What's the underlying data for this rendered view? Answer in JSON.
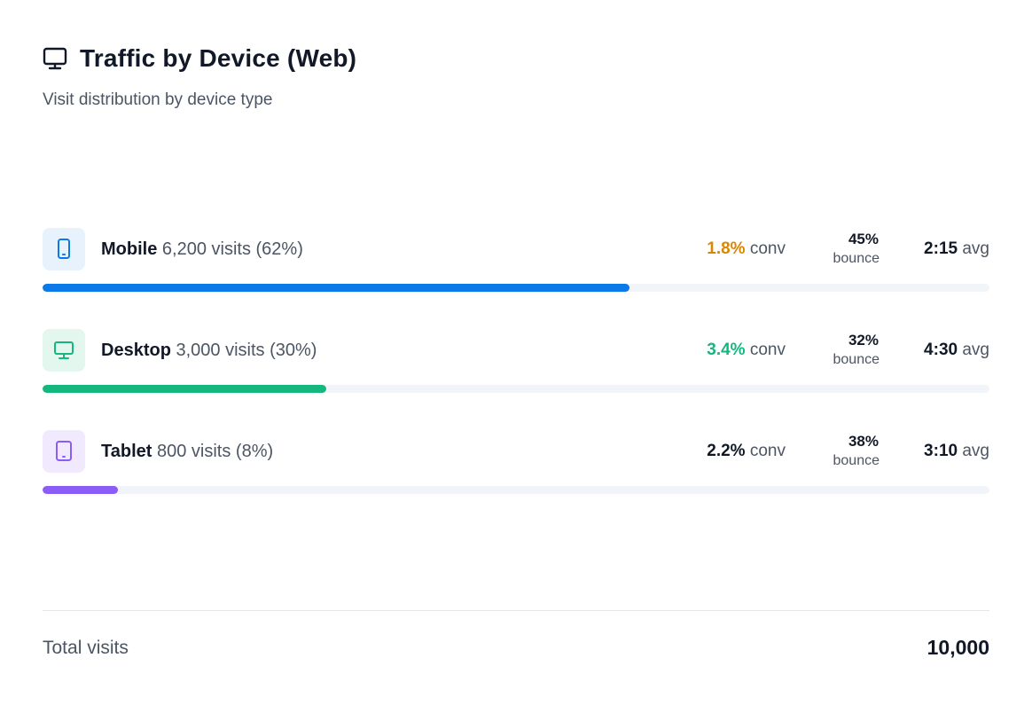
{
  "header": {
    "icon": "monitor-icon",
    "title": "Traffic by Device (Web)",
    "subtitle": "Visit distribution by device type"
  },
  "devices": [
    {
      "icon": "mobile-icon",
      "name": "Mobile",
      "detail": "6,200 visits (62%)",
      "share": 0.62,
      "accent": "#0b7ae8",
      "icon_bg": "#e8f2fd",
      "conv_value": "1.8%",
      "conv_color": "#d98706",
      "conv_label": "conv",
      "bounce_value": "45%",
      "bounce_label": "bounce",
      "avg_value": "2:15",
      "avg_label": "avg"
    },
    {
      "icon": "desktop-icon",
      "name": "Desktop",
      "detail": "3,000 visits (30%)",
      "share": 0.3,
      "accent": "#16b67f",
      "icon_bg": "#e4f7ef",
      "conv_value": "3.4%",
      "conv_color": "#16b67f",
      "conv_label": "conv",
      "bounce_value": "32%",
      "bounce_label": "bounce",
      "avg_value": "4:30",
      "avg_label": "avg"
    },
    {
      "icon": "tablet-icon",
      "name": "Tablet",
      "detail": "800 visits (8%)",
      "share": 0.08,
      "accent": "#8b5cf6",
      "icon_bg": "#f1eafe",
      "conv_value": "2.2%",
      "conv_color": "#111827",
      "conv_label": "conv",
      "bounce_value": "38%",
      "bounce_label": "bounce",
      "avg_value": "3:10",
      "avg_label": "avg"
    }
  ],
  "footer": {
    "total_label": "Total visits",
    "total_value": "10,000"
  }
}
